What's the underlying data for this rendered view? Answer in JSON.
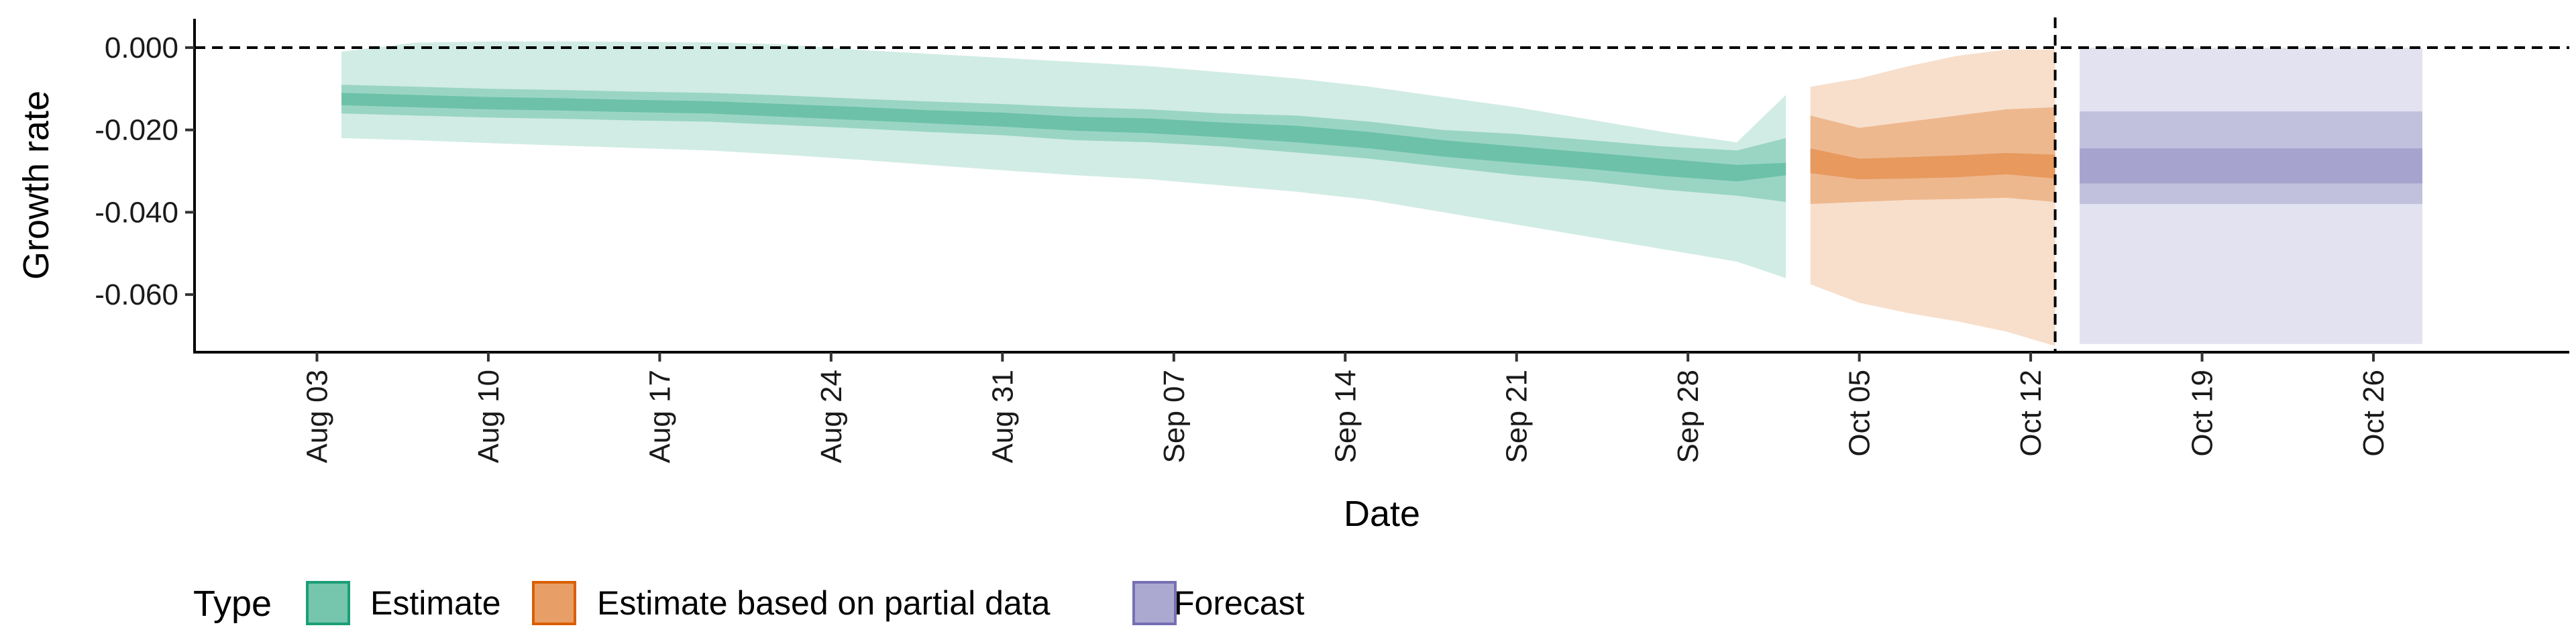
{
  "chart_data": {
    "type": "area",
    "xlabel": "Date",
    "ylabel": "Growth rate",
    "ylim": [
      -0.074,
      0.007
    ],
    "xlim": [
      "2020-07-29",
      "2020-11-03"
    ],
    "y_ticks": [
      0.0,
      -0.02,
      -0.04,
      -0.06
    ],
    "y_tick_labels": [
      "0.000",
      "-0.020",
      "-0.040",
      "-0.060"
    ],
    "x_ticks": [
      "2020-08-03",
      "2020-08-10",
      "2020-08-17",
      "2020-08-24",
      "2020-08-31",
      "2020-09-07",
      "2020-09-14",
      "2020-09-21",
      "2020-09-28",
      "2020-10-05",
      "2020-10-12",
      "2020-10-19",
      "2020-10-26"
    ],
    "x_tick_labels": [
      "Aug 03",
      "Aug 10",
      "Aug 17",
      "Aug 24",
      "Aug 31",
      "Sep 07",
      "Sep 14",
      "Sep 21",
      "Sep 28",
      "Oct 05",
      "Oct 12",
      "Oct 19",
      "Oct 26"
    ],
    "reference_lines": {
      "horizontal_y": 0.0,
      "vertical_x": "2020-10-13",
      "style": "dashed"
    },
    "legend": {
      "title": "Type",
      "position": "bottom-left",
      "entries": [
        "Estimate",
        "Estimate based on partial data",
        "Forecast"
      ]
    },
    "colors": {
      "Estimate": "#1b9e77",
      "Estimate based on partial data": "#d95f02",
      "Forecast": "#7570b3"
    },
    "grid": false,
    "series": [
      {
        "name": "Estimate",
        "x": [
          "2020-08-04",
          "2020-08-07",
          "2020-08-10",
          "2020-08-13",
          "2020-08-16",
          "2020-08-19",
          "2020-08-22",
          "2020-08-25",
          "2020-08-28",
          "2020-08-31",
          "2020-09-03",
          "2020-09-06",
          "2020-09-09",
          "2020-09-12",
          "2020-09-15",
          "2020-09-18",
          "2020-09-21",
          "2020-09-24",
          "2020-09-27",
          "2020-09-30",
          "2020-10-02"
        ],
        "median": [
          -0.0125,
          -0.013,
          -0.0135,
          -0.0138,
          -0.0142,
          -0.0145,
          -0.0152,
          -0.016,
          -0.0168,
          -0.0175,
          -0.0185,
          -0.019,
          -0.02,
          -0.021,
          -0.0225,
          -0.0245,
          -0.026,
          -0.0275,
          -0.029,
          -0.0305,
          -0.0295
        ],
        "lower_20": [
          -0.014,
          -0.0145,
          -0.015,
          -0.0153,
          -0.0157,
          -0.016,
          -0.0168,
          -0.0176,
          -0.0184,
          -0.0192,
          -0.0202,
          -0.0208,
          -0.0218,
          -0.023,
          -0.0245,
          -0.0265,
          -0.028,
          -0.0295,
          -0.0312,
          -0.0325,
          -0.031
        ],
        "upper_20": [
          -0.011,
          -0.0115,
          -0.012,
          -0.0123,
          -0.0127,
          -0.013,
          -0.0137,
          -0.0144,
          -0.0152,
          -0.0158,
          -0.0168,
          -0.0172,
          -0.0182,
          -0.019,
          -0.0205,
          -0.0225,
          -0.024,
          -0.0255,
          -0.027,
          -0.0285,
          -0.028
        ],
        "lower_50": [
          -0.016,
          -0.0165,
          -0.017,
          -0.0173,
          -0.0177,
          -0.018,
          -0.0188,
          -0.0196,
          -0.0205,
          -0.0213,
          -0.0225,
          -0.023,
          -0.024,
          -0.0255,
          -0.027,
          -0.029,
          -0.031,
          -0.0325,
          -0.0345,
          -0.036,
          -0.0375
        ],
        "upper_50": [
          -0.009,
          -0.0095,
          -0.01,
          -0.0103,
          -0.0107,
          -0.011,
          -0.0116,
          -0.0124,
          -0.0131,
          -0.0137,
          -0.0145,
          -0.015,
          -0.016,
          -0.0165,
          -0.018,
          -0.02,
          -0.021,
          -0.0225,
          -0.024,
          -0.025,
          -0.022
        ],
        "lower_90": [
          -0.022,
          -0.0225,
          -0.0232,
          -0.0238,
          -0.0244,
          -0.025,
          -0.026,
          -0.0272,
          -0.0285,
          -0.0298,
          -0.031,
          -0.032,
          -0.0335,
          -0.035,
          -0.037,
          -0.04,
          -0.043,
          -0.046,
          -0.049,
          -0.052,
          -0.056
        ],
        "upper_90": [
          -0.001,
          0.0012,
          0.0015,
          0.0015,
          0.0014,
          0.0013,
          0.0008,
          -0.0005,
          -0.0015,
          -0.0025,
          -0.0035,
          -0.0045,
          -0.006,
          -0.0075,
          -0.0095,
          -0.012,
          -0.0145,
          -0.0175,
          -0.0205,
          -0.023,
          -0.0115
        ]
      },
      {
        "name": "Estimate based on partial data",
        "x": [
          "2020-10-03",
          "2020-10-05",
          "2020-10-07",
          "2020-10-09",
          "2020-10-11",
          "2020-10-13"
        ],
        "median": [
          -0.0275,
          -0.0295,
          -0.0292,
          -0.0288,
          -0.0282,
          -0.0288
        ],
        "lower_20": [
          -0.0305,
          -0.032,
          -0.0318,
          -0.0315,
          -0.0308,
          -0.0318
        ],
        "upper_20": [
          -0.0245,
          -0.027,
          -0.0266,
          -0.0262,
          -0.0256,
          -0.026
        ],
        "lower_50": [
          -0.038,
          -0.0375,
          -0.037,
          -0.0368,
          -0.0365,
          -0.0375
        ],
        "upper_50": [
          -0.0165,
          -0.0195,
          -0.018,
          -0.0165,
          -0.015,
          -0.0145
        ],
        "lower_90": [
          -0.0575,
          -0.062,
          -0.0645,
          -0.0665,
          -0.069,
          -0.0725
        ],
        "upper_90": [
          -0.0095,
          -0.0075,
          -0.0045,
          -0.002,
          -0.0005,
          -0.0005
        ]
      },
      {
        "name": "Forecast",
        "x": [
          "2020-10-14",
          "2020-10-28"
        ],
        "median": [
          -0.0285,
          -0.0285
        ],
        "lower_20": [
          -0.033,
          -0.033
        ],
        "upper_20": [
          -0.0245,
          -0.0245
        ],
        "lower_50": [
          -0.038,
          -0.038
        ],
        "upper_50": [
          -0.0155,
          -0.0155
        ],
        "lower_90": [
          -0.072,
          -0.072
        ],
        "upper_90": [
          0.0,
          0.0
        ]
      }
    ]
  }
}
